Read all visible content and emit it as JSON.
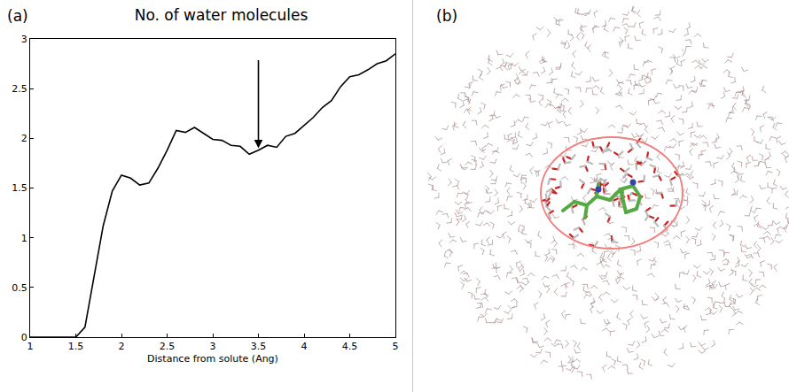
{
  "panels": {
    "a": "(a)",
    "b": "(b)"
  },
  "chart_data": {
    "type": "line",
    "title": "No. of water molecules",
    "x_label": "Distance from solute (Ang)",
    "x": [
      1.0,
      1.1,
      1.2,
      1.3,
      1.4,
      1.5,
      1.6,
      1.7,
      1.8,
      1.9,
      2.0,
      2.1,
      2.2,
      2.3,
      2.4,
      2.5,
      2.6,
      2.7,
      2.8,
      2.9,
      3.0,
      3.1,
      3.2,
      3.3,
      3.4,
      3.5,
      3.6,
      3.7,
      3.8,
      3.9,
      4.0,
      4.1,
      4.2,
      4.3,
      4.4,
      4.5,
      4.6,
      4.7,
      4.8,
      4.9,
      5.0
    ],
    "values": [
      0,
      0,
      0,
      0,
      0,
      0,
      0.1,
      0.6,
      1.12,
      1.47,
      1.63,
      1.6,
      1.53,
      1.55,
      1.7,
      1.88,
      2.08,
      2.06,
      2.11,
      2.05,
      1.99,
      1.98,
      1.93,
      1.92,
      1.84,
      1.88,
      1.93,
      1.91,
      2.02,
      2.05,
      2.13,
      2.21,
      2.31,
      2.38,
      2.52,
      2.62,
      2.64,
      2.69,
      2.75,
      2.78,
      2.85
    ],
    "color": "#000000",
    "xlim": [
      1,
      5
    ],
    "xticks": [
      1,
      1.5,
      2,
      2.5,
      3,
      3.5,
      4,
      4.5,
      5
    ],
    "ylim": [
      0,
      3
    ],
    "yticks": [
      0,
      0.5,
      1,
      1.5,
      2,
      2.5,
      3
    ],
    "grid": false,
    "arrow": {
      "x": 3.5,
      "y": [
        2.8,
        1.9
      ]
    }
  }
}
